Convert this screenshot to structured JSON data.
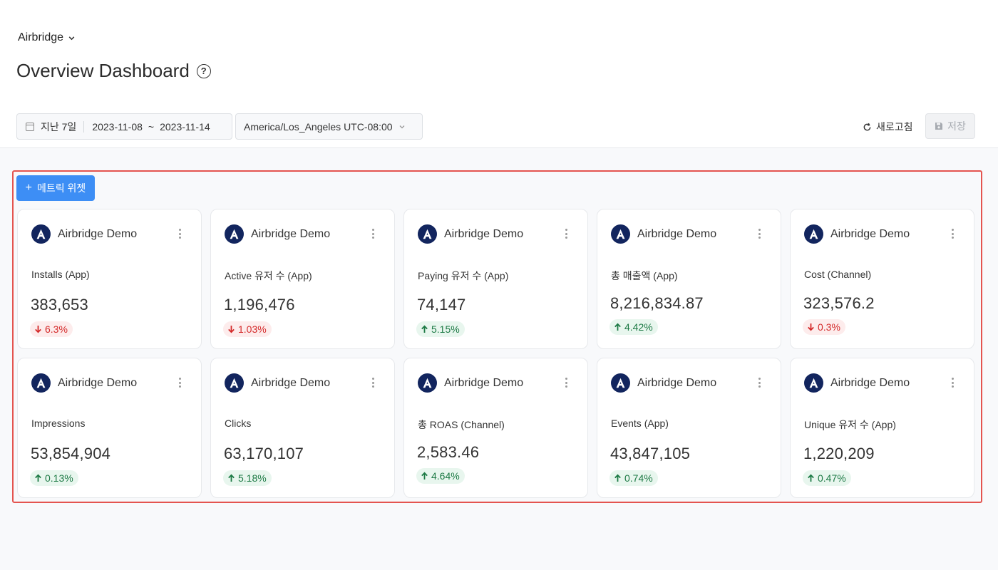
{
  "header": {
    "app_switcher": "Airbridge",
    "title": "Overview Dashboard",
    "help_icon": "question-circle-icon"
  },
  "filters": {
    "date_preset": "지난 7일",
    "date_start": "2023-11-08",
    "date_sep": "~",
    "date_end": "2023-11-14",
    "timezone": "America/Los_Angeles UTC-08:00"
  },
  "actions": {
    "refresh_label": "새로고침",
    "save_label": "저장"
  },
  "add_widget_label": "메트릭 위젯",
  "colors": {
    "accent": "#3d8ef5",
    "frame": "#e4544f",
    "up": "#1d7a45",
    "down": "#d42a2a",
    "logo": "#12255e"
  },
  "cards": [
    {
      "app": "Airbridge Demo",
      "metric": "Installs (App)",
      "value": "383,653",
      "change": "6.3%",
      "direction": "down"
    },
    {
      "app": "Airbridge Demo",
      "metric": "Active 유저 수 (App)",
      "value": "1,196,476",
      "change": "1.03%",
      "direction": "down"
    },
    {
      "app": "Airbridge Demo",
      "metric": "Paying 유저 수 (App)",
      "value": "74,147",
      "change": "5.15%",
      "direction": "up"
    },
    {
      "app": "Airbridge Demo",
      "metric": "총 매출액 (App)",
      "value": "8,216,834.87",
      "change": "4.42%",
      "direction": "up"
    },
    {
      "app": "Airbridge Demo",
      "metric": "Cost (Channel)",
      "value": "323,576.2",
      "change": "0.3%",
      "direction": "down"
    },
    {
      "app": "Airbridge Demo",
      "metric": "Impressions",
      "value": "53,854,904",
      "change": "0.13%",
      "direction": "up"
    },
    {
      "app": "Airbridge Demo",
      "metric": "Clicks",
      "value": "63,170,107",
      "change": "5.18%",
      "direction": "up"
    },
    {
      "app": "Airbridge Demo",
      "metric": "총 ROAS (Channel)",
      "value": "2,583.46",
      "change": "4.64%",
      "direction": "up"
    },
    {
      "app": "Airbridge Demo",
      "metric": "Events (App)",
      "value": "43,847,105",
      "change": "0.74%",
      "direction": "up"
    },
    {
      "app": "Airbridge Demo",
      "metric": "Unique 유저 수 (App)",
      "value": "1,220,209",
      "change": "0.47%",
      "direction": "up"
    }
  ]
}
